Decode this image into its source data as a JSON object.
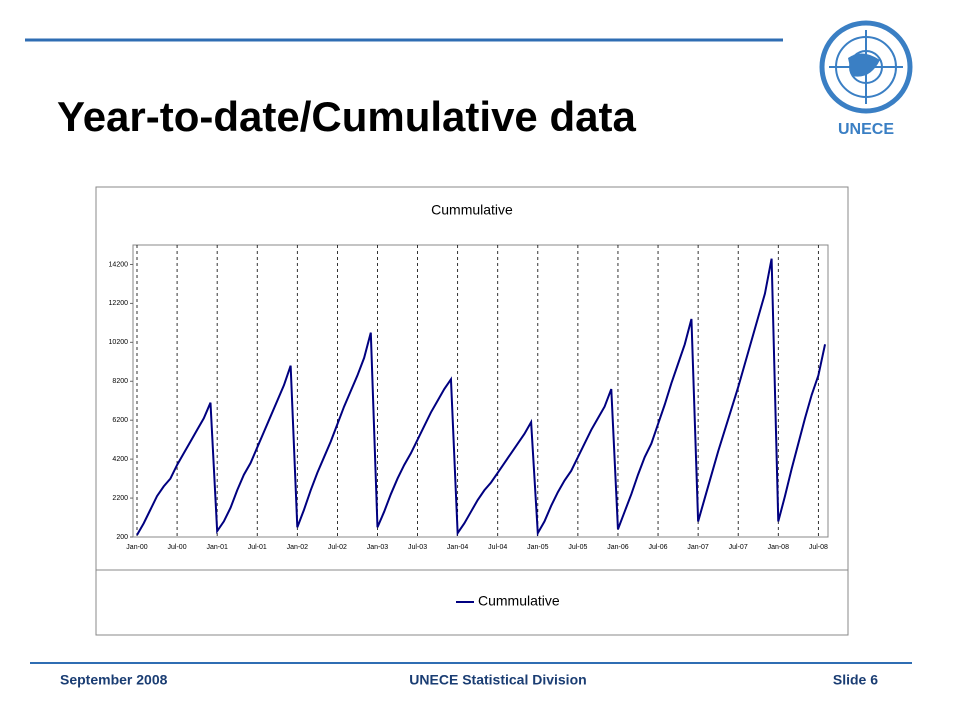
{
  "header": {
    "title": "Year-to-date/Cumulative data",
    "logo": "UNECE"
  },
  "footer": {
    "date": "September 2008",
    "org": "UNECE Statistical Division",
    "slide": "Slide 6"
  },
  "chart_data": {
    "type": "line",
    "title": "Cummulative",
    "grid": true,
    "legend": "bottom",
    "categories": [
      "Jan-00",
      null,
      null,
      null,
      null,
      null,
      "Jul-00",
      null,
      null,
      null,
      null,
      null,
      "Jan-01",
      null,
      null,
      null,
      null,
      null,
      "Jul-01",
      null,
      null,
      null,
      null,
      null,
      "Jan-02",
      null,
      null,
      null,
      null,
      null,
      "Jul-02",
      null,
      null,
      null,
      null,
      null,
      "Jan-03",
      null,
      null,
      null,
      null,
      null,
      "Jul-03",
      null,
      null,
      null,
      null,
      null,
      "Jan-04",
      null,
      null,
      null,
      null,
      null,
      "Jul-04",
      null,
      null,
      null,
      null,
      null,
      "Jan-05",
      null,
      null,
      null,
      null,
      null,
      "Jul-05",
      null,
      null,
      null,
      null,
      null,
      "Jan-06",
      null,
      null,
      null,
      null,
      null,
      "Jul-06",
      null,
      null,
      null,
      null,
      null,
      "Jan-07",
      null,
      null,
      null,
      null,
      null,
      "Jul-07",
      null,
      null,
      null,
      null,
      null,
      "Jan-08",
      null,
      null,
      null,
      null,
      null,
      "Jul-08",
      null
    ],
    "series": [
      {
        "name": "Cummulative",
        "color": "#000080",
        "values": [
          300,
          900,
          1600,
          2300,
          2800,
          3200,
          3900,
          4500,
          5100,
          5700,
          6300,
          7100,
          500,
          1000,
          1700,
          2600,
          3400,
          4000,
          4800,
          5600,
          6400,
          7200,
          8000,
          9000,
          700,
          1600,
          2600,
          3500,
          4300,
          5100,
          6000,
          6900,
          7700,
          8500,
          9400,
          10700,
          700,
          1500,
          2400,
          3200,
          3900,
          4500,
          5200,
          5900,
          6600,
          7200,
          7800,
          8300,
          400,
          900,
          1500,
          2100,
          2600,
          3000,
          3500,
          4000,
          4500,
          5000,
          5500,
          6100,
          400,
          1000,
          1800,
          2500,
          3100,
          3600,
          4300,
          5000,
          5700,
          6300,
          6900,
          7800,
          600,
          1500,
          2400,
          3400,
          4300,
          5000,
          6000,
          7000,
          8100,
          9100,
          10100,
          11400,
          1000,
          2200,
          3400,
          4600,
          5700,
          6800,
          7900,
          9100,
          10300,
          11500,
          12700,
          14500,
          1000,
          2300,
          3700,
          5000,
          6300,
          7500,
          8500,
          10100
        ]
      }
    ],
    "ylim": [
      200,
      15200
    ],
    "yticks": [
      200,
      2200,
      4200,
      6200,
      8200,
      10200,
      12200,
      14200
    ]
  }
}
